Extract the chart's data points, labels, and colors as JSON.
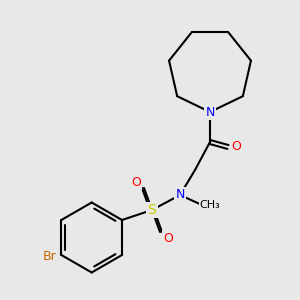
{
  "bg_color": "#e8e8e8",
  "bond_color": "#000000",
  "bond_lw": 1.5,
  "atom_colors": {
    "N": "#0000ff",
    "O": "#ff0000",
    "S": "#cccc00",
    "Br": "#cc6600",
    "C": "#000000"
  },
  "font_size": 9,
  "font_size_small": 8
}
